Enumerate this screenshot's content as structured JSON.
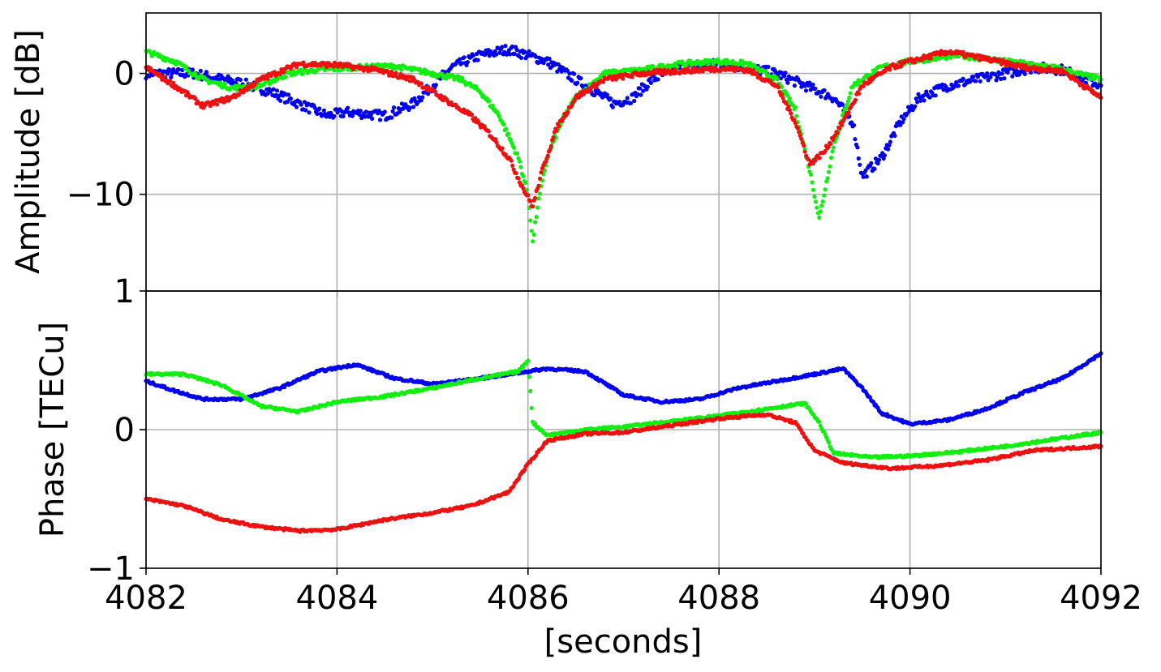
{
  "chart_data": [
    {
      "type": "scatter",
      "title": "",
      "xlabel": "",
      "ylabel": "Amplitude [dB]",
      "xlim": [
        4082,
        4092
      ],
      "ylim": [
        -18,
        5
      ],
      "x_ticks": [
        4082,
        4084,
        4086,
        4088,
        4090,
        4092
      ],
      "y_ticks": [
        0,
        -10
      ],
      "y_tick_labels": [
        "0",
        "−10"
      ],
      "grid": true,
      "series": [
        {
          "color": "#0000ee",
          "points": [
            [
              4082.0,
              0.0
            ],
            [
              4082.5,
              0.0
            ],
            [
              4082.8,
              -0.5
            ],
            [
              4083.0,
              -0.8
            ],
            [
              4083.3,
              -1.5
            ],
            [
              4083.6,
              -2.5
            ],
            [
              4083.9,
              -3.5
            ],
            [
              4084.1,
              -3.2
            ],
            [
              4084.5,
              -3.5
            ],
            [
              4084.8,
              -2.5
            ],
            [
              4085.0,
              -1.0
            ],
            [
              4085.2,
              0.5
            ],
            [
              4085.5,
              1.5
            ],
            [
              4085.8,
              2.0
            ],
            [
              4086.0,
              1.5
            ],
            [
              4086.2,
              1.0
            ],
            [
              4086.4,
              0.0
            ],
            [
              4086.6,
              -1.0
            ],
            [
              4086.9,
              -2.5
            ],
            [
              4087.1,
              -2.0
            ],
            [
              4087.3,
              -0.5
            ],
            [
              4087.6,
              0.5
            ],
            [
              4088.0,
              0.8
            ],
            [
              4088.3,
              0.5
            ],
            [
              4088.6,
              0.0
            ],
            [
              4088.9,
              -1.0
            ],
            [
              4089.2,
              -2.0
            ],
            [
              4089.4,
              -4.0
            ],
            [
              4089.5,
              -8.5
            ],
            [
              4089.7,
              -7.0
            ],
            [
              4089.9,
              -4.0
            ],
            [
              4090.1,
              -2.0
            ],
            [
              4090.4,
              -1.0
            ],
            [
              4090.7,
              -0.5
            ],
            [
              4091.0,
              0.0
            ],
            [
              4091.3,
              0.5
            ],
            [
              4091.6,
              0.3
            ],
            [
              4092.0,
              -1.0
            ]
          ]
        },
        {
          "color": "#11ee11",
          "points": [
            [
              4082.0,
              1.8
            ],
            [
              4082.3,
              1.0
            ],
            [
              4082.6,
              -0.5
            ],
            [
              4082.9,
              -1.2
            ],
            [
              4083.2,
              -1.0
            ],
            [
              4083.5,
              0.0
            ],
            [
              4083.8,
              0.3
            ],
            [
              4084.2,
              0.5
            ],
            [
              4084.6,
              0.6
            ],
            [
              4085.0,
              0.0
            ],
            [
              4085.3,
              -0.5
            ],
            [
              4085.5,
              -1.5
            ],
            [
              4085.7,
              -3.5
            ],
            [
              4085.9,
              -7.0
            ],
            [
              4086.0,
              -10.0
            ],
            [
              4086.05,
              -14.0
            ],
            [
              4086.1,
              -11.0
            ],
            [
              4086.2,
              -7.0
            ],
            [
              4086.35,
              -4.0
            ],
            [
              4086.5,
              -2.0
            ],
            [
              4086.8,
              0.0
            ],
            [
              4087.2,
              0.3
            ],
            [
              4087.6,
              0.8
            ],
            [
              4088.0,
              1.0
            ],
            [
              4088.3,
              0.8
            ],
            [
              4088.6,
              -0.5
            ],
            [
              4088.8,
              -3.0
            ],
            [
              4088.95,
              -8.0
            ],
            [
              4089.05,
              -12.0
            ],
            [
              4089.2,
              -6.0
            ],
            [
              4089.4,
              -1.0
            ],
            [
              4089.7,
              0.5
            ],
            [
              4090.0,
              1.0
            ],
            [
              4090.5,
              1.5
            ],
            [
              4091.0,
              1.0
            ],
            [
              4091.5,
              0.5
            ],
            [
              4092.0,
              -0.5
            ]
          ]
        },
        {
          "color": "#ee1111",
          "points": [
            [
              4082.0,
              0.5
            ],
            [
              4082.3,
              -1.0
            ],
            [
              4082.6,
              -2.7
            ],
            [
              4082.9,
              -2.0
            ],
            [
              4083.2,
              -0.5
            ],
            [
              4083.6,
              0.8
            ],
            [
              4084.0,
              0.7
            ],
            [
              4084.4,
              0.3
            ],
            [
              4084.8,
              -0.5
            ],
            [
              4085.1,
              -2.0
            ],
            [
              4085.4,
              -3.5
            ],
            [
              4085.6,
              -5.0
            ],
            [
              4085.8,
              -7.0
            ],
            [
              4085.95,
              -9.5
            ],
            [
              4086.05,
              -11.0
            ],
            [
              4086.15,
              -8.0
            ],
            [
              4086.3,
              -4.5
            ],
            [
              4086.5,
              -2.0
            ],
            [
              4086.8,
              -0.5
            ],
            [
              4087.2,
              0.0
            ],
            [
              4087.6,
              0.2
            ],
            [
              4088.0,
              0.4
            ],
            [
              4088.3,
              0.3
            ],
            [
              4088.6,
              -1.0
            ],
            [
              4088.8,
              -4.0
            ],
            [
              4088.95,
              -7.5
            ],
            [
              4089.1,
              -6.5
            ],
            [
              4089.3,
              -4.0
            ],
            [
              4089.5,
              -1.0
            ],
            [
              4089.8,
              0.5
            ],
            [
              4090.0,
              1.0
            ],
            [
              4090.4,
              1.8
            ],
            [
              4090.8,
              1.2
            ],
            [
              4091.2,
              0.5
            ],
            [
              4091.6,
              0.2
            ],
            [
              4092.0,
              -2.0
            ]
          ]
        }
      ]
    },
    {
      "type": "scatter",
      "title": "",
      "xlabel": "[seconds]",
      "ylabel": "Phase [TECu]",
      "xlim": [
        4082,
        4092
      ],
      "ylim": [
        -1,
        1
      ],
      "x_ticks": [
        4082,
        4084,
        4086,
        4088,
        4090,
        4092
      ],
      "x_tick_labels": [
        "4082",
        "4084",
        "4086",
        "4088",
        "4090",
        "4092"
      ],
      "y_ticks": [
        1,
        0,
        -1
      ],
      "y_tick_labels": [
        "1",
        "0",
        "−1"
      ],
      "grid": true,
      "series": [
        {
          "color": "#0000ee",
          "points": [
            [
              4082.0,
              0.35
            ],
            [
              4082.3,
              0.28
            ],
            [
              4082.6,
              0.22
            ],
            [
              4083.0,
              0.22
            ],
            [
              4083.4,
              0.3
            ],
            [
              4083.8,
              0.42
            ],
            [
              4084.2,
              0.47
            ],
            [
              4084.6,
              0.37
            ],
            [
              4085.0,
              0.33
            ],
            [
              4085.4,
              0.36
            ],
            [
              4085.8,
              0.4
            ],
            [
              4086.0,
              0.42
            ],
            [
              4086.2,
              0.44
            ],
            [
              4086.6,
              0.42
            ],
            [
              4087.0,
              0.25
            ],
            [
              4087.4,
              0.2
            ],
            [
              4087.8,
              0.22
            ],
            [
              4088.2,
              0.3
            ],
            [
              4088.6,
              0.35
            ],
            [
              4089.0,
              0.4
            ],
            [
              4089.3,
              0.44
            ],
            [
              4089.5,
              0.3
            ],
            [
              4089.7,
              0.12
            ],
            [
              4090.0,
              0.04
            ],
            [
              4090.4,
              0.07
            ],
            [
              4090.8,
              0.15
            ],
            [
              4091.2,
              0.27
            ],
            [
              4091.6,
              0.37
            ],
            [
              4092.0,
              0.55
            ]
          ]
        },
        {
          "color": "#11ee11",
          "points": [
            [
              4082.0,
              0.4
            ],
            [
              4082.4,
              0.4
            ],
            [
              4082.8,
              0.32
            ],
            [
              4083.2,
              0.17
            ],
            [
              4083.6,
              0.13
            ],
            [
              4084.0,
              0.2
            ],
            [
              4084.5,
              0.24
            ],
            [
              4085.0,
              0.3
            ],
            [
              4085.5,
              0.37
            ],
            [
              4085.9,
              0.42
            ],
            [
              4086.0,
              0.5
            ],
            [
              4086.05,
              0.05
            ],
            [
              4086.2,
              -0.04
            ],
            [
              4086.6,
              0.0
            ],
            [
              4087.0,
              0.02
            ],
            [
              4087.5,
              0.06
            ],
            [
              4088.0,
              0.1
            ],
            [
              4088.5,
              0.15
            ],
            [
              4088.9,
              0.19
            ],
            [
              4089.05,
              0.05
            ],
            [
              4089.2,
              -0.17
            ],
            [
              4089.6,
              -0.2
            ],
            [
              4090.0,
              -0.19
            ],
            [
              4090.5,
              -0.16
            ],
            [
              4091.0,
              -0.12
            ],
            [
              4091.5,
              -0.07
            ],
            [
              4092.0,
              -0.02
            ]
          ]
        },
        {
          "color": "#ee1111",
          "points": [
            [
              4082.0,
              -0.5
            ],
            [
              4082.4,
              -0.55
            ],
            [
              4082.8,
              -0.65
            ],
            [
              4083.2,
              -0.7
            ],
            [
              4083.6,
              -0.73
            ],
            [
              4084.0,
              -0.72
            ],
            [
              4084.5,
              -0.65
            ],
            [
              4085.0,
              -0.6
            ],
            [
              4085.4,
              -0.55
            ],
            [
              4085.8,
              -0.45
            ],
            [
              4086.0,
              -0.25
            ],
            [
              4086.2,
              -0.08
            ],
            [
              4086.6,
              -0.03
            ],
            [
              4087.0,
              -0.02
            ],
            [
              4087.5,
              0.03
            ],
            [
              4088.0,
              0.08
            ],
            [
              4088.5,
              0.11
            ],
            [
              4088.8,
              0.05
            ],
            [
              4089.0,
              -0.15
            ],
            [
              4089.3,
              -0.24
            ],
            [
              4089.8,
              -0.28
            ],
            [
              4090.3,
              -0.26
            ],
            [
              4090.8,
              -0.22
            ],
            [
              4091.3,
              -0.15
            ],
            [
              4092.0,
              -0.12
            ]
          ]
        }
      ]
    }
  ]
}
